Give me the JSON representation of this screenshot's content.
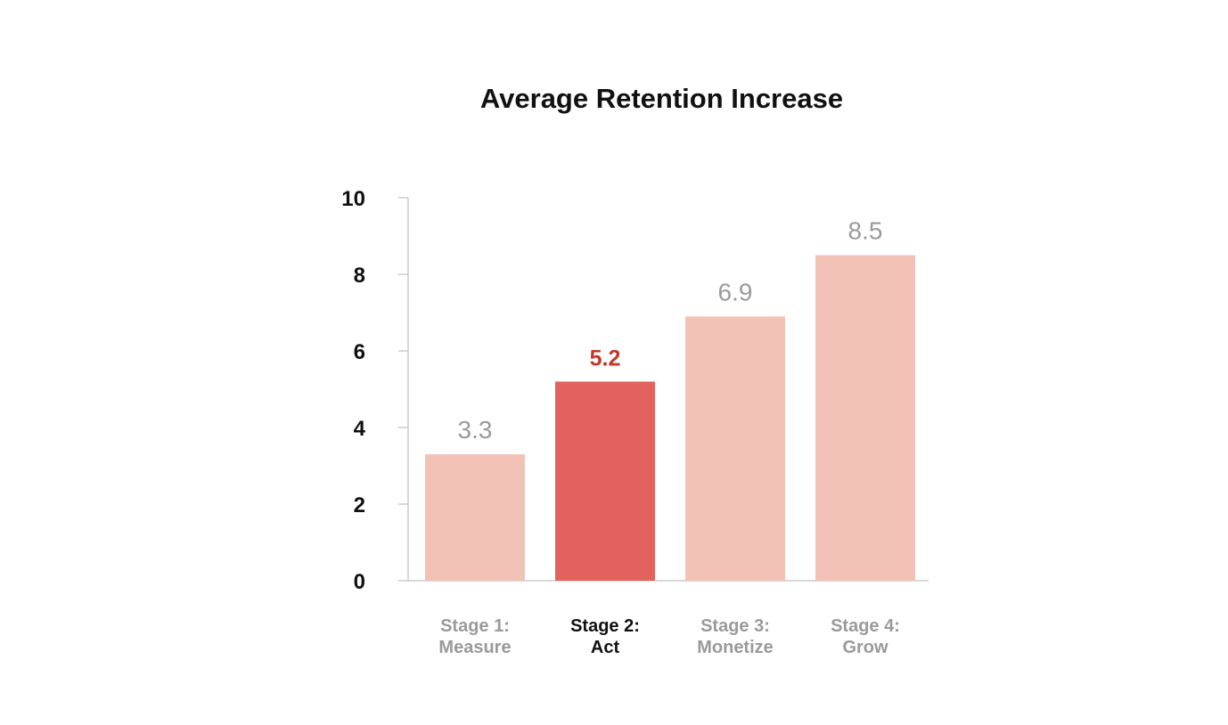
{
  "chart_data": {
    "type": "bar",
    "title": "Average Retention Increase",
    "xlabel": "",
    "ylabel": "",
    "ylim": [
      0,
      10
    ],
    "yticks": [
      "0",
      "2",
      "4",
      "6",
      "8",
      "10"
    ],
    "categories": [
      [
        "Stage 1:",
        "Measure"
      ],
      [
        "Stage 2:",
        "Act"
      ],
      [
        "Stage 3:",
        "Monetize"
      ],
      [
        "Stage 4:",
        "Grow"
      ]
    ],
    "values": [
      3.3,
      5.2,
      6.9,
      8.5
    ],
    "value_labels": [
      "3.3",
      "5.2",
      "6.9",
      "8.5"
    ],
    "highlight_index": 1,
    "grid": false,
    "legend": "none",
    "colors": {
      "bar": "#f2c2b7",
      "highlight_bar": "#e2635d",
      "highlight_value": "#c0392b",
      "muted_text": "#9a9a9a",
      "axis": "#cccccc"
    }
  }
}
